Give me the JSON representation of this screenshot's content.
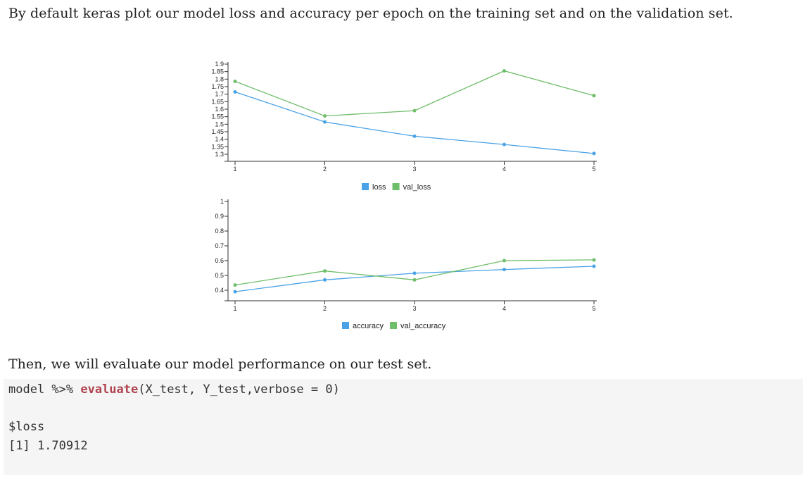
{
  "intro_text": "By default keras plot our model loss and accuracy per epoch on the training set and on the validation set.",
  "then_text": "Then, we will evaluate our model performance on our test set.",
  "code": {
    "prefix": "model %>% ",
    "function": "evaluate",
    "args": "(X_test, Y_test,verbose = 0)",
    "output_name": "$loss",
    "output_value": "[1] 1.70912"
  },
  "colors": {
    "train": "#4aa3e6",
    "val": "#6fbe6a"
  },
  "chart_data": [
    {
      "type": "line",
      "x": [
        1,
        2,
        3,
        4,
        5
      ],
      "xticks": [
        "1",
        "2",
        "3",
        "4",
        "5"
      ],
      "ylim": [
        1.3,
        1.9
      ],
      "yticks": [
        "1.3",
        "1.35",
        "1.4",
        "1.45",
        "1.5",
        "1.55",
        "1.6",
        "1.65",
        "1.7",
        "1.75",
        "1.8",
        "1.85",
        "1.9"
      ],
      "series": [
        {
          "name": "loss",
          "values": [
            1.715,
            1.515,
            1.42,
            1.365,
            1.305
          ]
        },
        {
          "name": "val_loss",
          "values": [
            1.785,
            1.555,
            1.59,
            1.855,
            1.69
          ]
        }
      ],
      "legend": "bottom-center",
      "grid": false
    },
    {
      "type": "line",
      "x": [
        1,
        2,
        3,
        4,
        5
      ],
      "xticks": [
        "1",
        "2",
        "3",
        "4",
        "5"
      ],
      "ylim": [
        0.4,
        1.0
      ],
      "yticks": [
        "0.4",
        "0.5",
        "0.6",
        "0.7",
        "0.8",
        "0.9",
        "1"
      ],
      "series": [
        {
          "name": "accuracy",
          "values": [
            0.39,
            0.47,
            0.515,
            0.54,
            0.562
          ]
        },
        {
          "name": "val_accuracy",
          "values": [
            0.435,
            0.53,
            0.47,
            0.6,
            0.605
          ]
        }
      ],
      "legend": "bottom-center",
      "grid": false
    }
  ]
}
